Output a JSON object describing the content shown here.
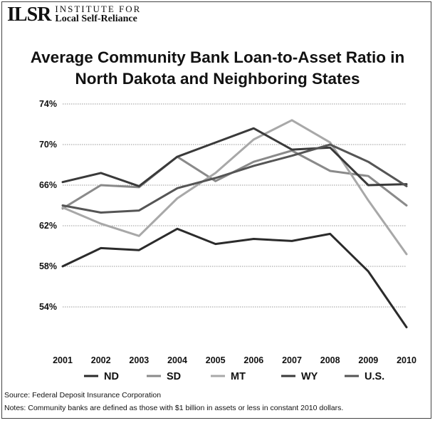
{
  "logo": {
    "mark": "ILSR",
    "line1": "INSTITUTE FOR",
    "line2": "Local Self-Reliance"
  },
  "title_line1": "Average Community Bank Loan-to-Asset Ratio in",
  "title_line2": "North Dakota and Neighboring States",
  "source": "Source: Federal Deposit Insurance Corporation",
  "notes": "Notes: Community banks are defined as those with $1 billion in assets or less in constant 2010 dollars.",
  "chart_data": {
    "type": "line",
    "x": [
      "2001",
      "2002",
      "2003",
      "2004",
      "2005",
      "2006",
      "2007",
      "2008",
      "2009",
      "2010"
    ],
    "ylim": [
      50,
      74
    ],
    "yticks": [
      54,
      58,
      62,
      66,
      70,
      74
    ],
    "ytick_labels": [
      "54%",
      "58%",
      "62%",
      "66%",
      "70%",
      "74%"
    ],
    "grid": true,
    "legend_position": "bottom",
    "series": [
      {
        "name": "ND",
        "color": "#2b2b2b",
        "values": [
          58.0,
          59.8,
          59.6,
          61.7,
          60.2,
          60.7,
          60.5,
          61.2,
          57.5,
          52.0
        ]
      },
      {
        "name": "SD",
        "color": "#8a8a8a",
        "values": [
          63.7,
          66.0,
          65.8,
          68.8,
          66.4,
          68.3,
          69.4,
          67.4,
          66.9,
          64.0
        ]
      },
      {
        "name": "MT",
        "color": "#a8a8a8",
        "values": [
          63.8,
          62.2,
          61.0,
          64.7,
          67.2,
          70.5,
          72.4,
          70.2,
          64.5,
          59.2
        ]
      },
      {
        "name": "WY",
        "color": "#3a3a3a",
        "values": [
          66.3,
          67.2,
          65.9,
          68.8,
          70.2,
          71.6,
          69.5,
          69.7,
          66.0,
          66.1
        ]
      },
      {
        "name": "U.S.",
        "color": "#555555",
        "values": [
          64.0,
          63.3,
          63.5,
          65.7,
          66.7,
          67.9,
          68.9,
          70.0,
          68.3,
          65.9
        ]
      }
    ]
  }
}
